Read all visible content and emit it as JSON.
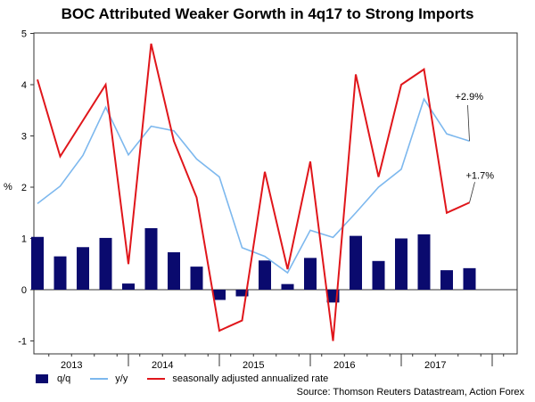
{
  "chart_data": {
    "type": "bar",
    "title": "BOC Attributed Weaker Gorwth in 4q17 to Strong Imports",
    "ylabel": "%",
    "xlabel": "",
    "ylim": [
      -1.2,
      5
    ],
    "yticks": [
      -1,
      0,
      1,
      2,
      3,
      4,
      5
    ],
    "xtick_labels": [
      "2013",
      "2014",
      "2015",
      "2016",
      "2017"
    ],
    "categories": [
      "2013Q1",
      "2013Q2",
      "2013Q3",
      "2013Q4",
      "2014Q1",
      "2014Q2",
      "2014Q3",
      "2014Q4",
      "2015Q1",
      "2015Q2",
      "2015Q3",
      "2015Q4",
      "2016Q1",
      "2016Q2",
      "2016Q3",
      "2016Q4",
      "2017Q1",
      "2017Q2",
      "2017Q3",
      "2017Q4"
    ],
    "series": [
      {
        "name": "q/q",
        "type": "bar",
        "color": "#0a0a6e",
        "values": [
          1.03,
          0.65,
          0.83,
          1.01,
          0.12,
          1.2,
          0.73,
          0.45,
          -0.2,
          -0.13,
          0.57,
          0.11,
          0.62,
          -0.25,
          1.05,
          0.56,
          1.0,
          1.08,
          0.38,
          0.42
        ]
      },
      {
        "name": "y/y",
        "type": "line",
        "color": "#7db8ee",
        "values": [
          1.68,
          2.02,
          2.62,
          3.56,
          2.63,
          3.19,
          3.1,
          2.55,
          2.2,
          0.82,
          0.65,
          0.33,
          1.16,
          1.02,
          1.5,
          2.0,
          2.35,
          3.72,
          3.04,
          2.9
        ]
      },
      {
        "name": "seasonally adjusted annualized rate",
        "type": "line",
        "color": "#e0161b",
        "values": [
          4.1,
          2.6,
          3.3,
          4.0,
          0.5,
          4.8,
          2.9,
          1.8,
          -0.8,
          -0.6,
          2.3,
          0.4,
          2.5,
          -1.0,
          4.2,
          2.2,
          4.0,
          4.3,
          1.5,
          1.7
        ]
      }
    ],
    "annotations": [
      "+2.9%",
      "+1.7%"
    ],
    "legend_position": "bottom-left",
    "grid": false
  },
  "source": "Source: Thomson Reuters Datastream, Action Forex"
}
